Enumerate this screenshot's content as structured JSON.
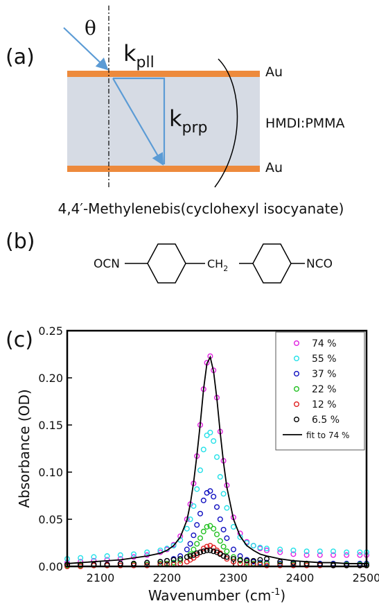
{
  "panel_a": {
    "label": "(a)",
    "angle": "θ",
    "k_parallel": {
      "base": "k",
      "sub": "pll"
    },
    "k_perpendicular": {
      "base": "k",
      "sub": "prp"
    },
    "top_layer": "Au",
    "middle_layer": "HMDI:PMMA",
    "bottom_layer": "Au"
  },
  "panel_b": {
    "label": "(b)",
    "title": "4,4′-Methylenebis(cyclohexyl isocyanate)",
    "left_group": "OCN",
    "bridge": {
      "base": "CH",
      "sub": "2"
    },
    "right_group": "NCO"
  },
  "chart_data": {
    "type": "scatter",
    "panel_label": "(c)",
    "x_label": {
      "base": "Wavenumber (cm",
      "sup": "-1",
      "end": ")"
    },
    "y_label": "Absorbance (OD)",
    "xlim": [
      2050,
      2500
    ],
    "ylim": [
      0,
      0.25
    ],
    "xticks": [
      2100,
      2200,
      2300,
      2400,
      2500
    ],
    "yticks": [
      {
        "value": 0,
        "label": "0.00"
      },
      {
        "value": 0.05,
        "label": "0.05"
      },
      {
        "value": 0.1,
        "label": "0.10"
      },
      {
        "value": 0.15,
        "label": "0.15"
      },
      {
        "value": 0.2,
        "label": "0.20"
      },
      {
        "value": 0.25,
        "label": "0.25"
      }
    ],
    "legend": "upper right",
    "x": [
      2050,
      2070,
      2090,
      2110,
      2130,
      2150,
      2170,
      2190,
      2200,
      2210,
      2220,
      2230,
      2235,
      2240,
      2245,
      2250,
      2255,
      2260,
      2265,
      2270,
      2275,
      2280,
      2285,
      2290,
      2300,
      2310,
      2320,
      2330,
      2340,
      2350,
      2370,
      2390,
      2410,
      2430,
      2450,
      2470,
      2490,
      2500
    ],
    "series": [
      {
        "name": "74 %",
        "color": "#e020e0",
        "style": "markers",
        "values": [
          0.004,
          0.005,
          0.006,
          0.007,
          0.008,
          0.01,
          0.012,
          0.015,
          0.018,
          0.023,
          0.032,
          0.05,
          0.066,
          0.088,
          0.117,
          0.15,
          0.188,
          0.216,
          0.223,
          0.208,
          0.179,
          0.143,
          0.112,
          0.086,
          0.052,
          0.035,
          0.026,
          0.022,
          0.019,
          0.017,
          0.015,
          0.013,
          0.012,
          0.012,
          0.012,
          0.012,
          0.012,
          0.012
        ]
      },
      {
        "name": "55 %",
        "color": "#22e0e8",
        "style": "markers",
        "values": [
          0.008,
          0.009,
          0.01,
          0.011,
          0.012,
          0.013,
          0.015,
          0.017,
          0.019,
          0.022,
          0.028,
          0.04,
          0.05,
          0.064,
          0.082,
          0.102,
          0.124,
          0.139,
          0.142,
          0.133,
          0.116,
          0.095,
          0.077,
          0.062,
          0.042,
          0.031,
          0.025,
          0.022,
          0.02,
          0.019,
          0.018,
          0.017,
          0.016,
          0.016,
          0.016,
          0.015,
          0.015,
          0.015
        ]
      },
      {
        "name": "37 %",
        "color": "#1010c0",
        "style": "markers",
        "values": [
          0.002,
          0.002,
          0.002,
          0.002,
          0.003,
          0.003,
          0.004,
          0.005,
          0.006,
          0.008,
          0.011,
          0.018,
          0.024,
          0.033,
          0.044,
          0.056,
          0.07,
          0.078,
          0.08,
          0.074,
          0.063,
          0.05,
          0.039,
          0.03,
          0.018,
          0.011,
          0.007,
          0.005,
          0.004,
          0.004,
          0.003,
          0.003,
          0.003,
          0.003,
          0.003,
          0.003,
          0.003,
          0.003
        ]
      },
      {
        "name": "22 %",
        "color": "#20c020",
        "style": "markers",
        "values": [
          0.001,
          0.001,
          0.001,
          0.001,
          0.001,
          0.002,
          0.002,
          0.003,
          0.003,
          0.004,
          0.006,
          0.01,
          0.013,
          0.018,
          0.024,
          0.03,
          0.037,
          0.042,
          0.043,
          0.04,
          0.034,
          0.027,
          0.021,
          0.016,
          0.01,
          0.006,
          0.004,
          0.003,
          0.003,
          0.003,
          0.002,
          0.002,
          0.002,
          0.002,
          0.002,
          0.002,
          0.002,
          0.002
        ]
      },
      {
        "name": "12 %",
        "color": "#e02020",
        "style": "markers",
        "values": [
          0.0,
          0.0,
          0.001,
          0.001,
          0.001,
          0.001,
          0.001,
          0.002,
          0.002,
          0.002,
          0.003,
          0.005,
          0.007,
          0.009,
          0.012,
          0.015,
          0.019,
          0.021,
          0.022,
          0.02,
          0.017,
          0.014,
          0.011,
          0.008,
          0.005,
          0.003,
          0.002,
          0.002,
          0.002,
          0.001,
          0.001,
          0.001,
          0.001,
          0.001,
          0.001,
          0.001,
          0.001,
          0.001
        ]
      },
      {
        "name": "6.5 %",
        "color": "#000000",
        "style": "markers",
        "values": [
          0.002,
          0.002,
          0.002,
          0.002,
          0.003,
          0.003,
          0.004,
          0.005,
          0.006,
          0.007,
          0.008,
          0.01,
          0.011,
          0.012,
          0.014,
          0.015,
          0.016,
          0.017,
          0.017,
          0.016,
          0.015,
          0.013,
          0.011,
          0.01,
          0.008,
          0.007,
          0.006,
          0.006,
          0.007,
          0.008,
          0.005,
          0.004,
          0.003,
          0.002,
          0.001,
          0.001,
          0.001,
          0.001
        ]
      },
      {
        "name": "fit to 74 %",
        "color": "#000000",
        "style": "line",
        "values": [
          0.003,
          0.004,
          0.005,
          0.006,
          0.007,
          0.009,
          0.011,
          0.014,
          0.017,
          0.022,
          0.031,
          0.049,
          0.066,
          0.089,
          0.118,
          0.151,
          0.188,
          0.215,
          0.222,
          0.207,
          0.178,
          0.142,
          0.11,
          0.084,
          0.05,
          0.032,
          0.022,
          0.017,
          0.013,
          0.011,
          0.008,
          0.006,
          0.005,
          0.004,
          0.004,
          0.003,
          0.003,
          0.003
        ]
      }
    ]
  }
}
